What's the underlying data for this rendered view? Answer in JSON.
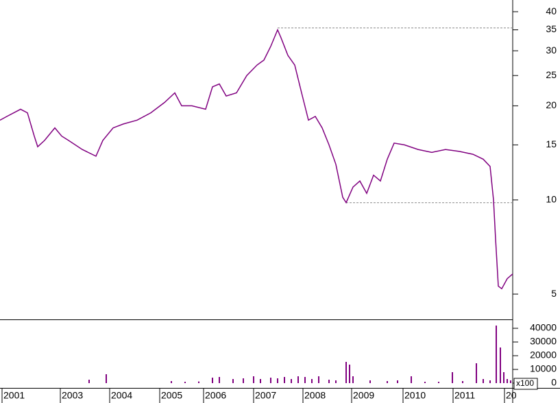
{
  "chart_data": [
    {
      "type": "line",
      "log_scale": true,
      "color": "#800080",
      "x": [
        0,
        10,
        30,
        40,
        50,
        55,
        65,
        80,
        90,
        100,
        120,
        140,
        150,
        165,
        180,
        200,
        220,
        240,
        255,
        265,
        280,
        300,
        310,
        320,
        330,
        345,
        360,
        375,
        385,
        395,
        405,
        410,
        420,
        430,
        440,
        450,
        460,
        470,
        480,
        490,
        500,
        505,
        515,
        525,
        535,
        545,
        555,
        565,
        575,
        590,
        610,
        630,
        650,
        670,
        690,
        705,
        715,
        720,
        723,
        727,
        732,
        740,
        748
      ],
      "values": [
        18,
        18.5,
        19.5,
        19,
        16,
        14.8,
        15.5,
        17,
        16,
        15.5,
        14.5,
        13.8,
        15.5,
        17,
        17.5,
        18,
        19,
        20.5,
        22,
        20,
        20,
        19.5,
        23,
        23.5,
        21.5,
        22,
        25,
        27,
        28,
        31,
        35,
        33,
        29,
        27,
        22,
        18,
        18.5,
        17,
        15,
        13,
        10.2,
        9.8,
        11,
        11.5,
        10.5,
        12,
        11.5,
        13.5,
        15.2,
        15,
        14.5,
        14.2,
        14.5,
        14.3,
        14,
        13.5,
        12.8,
        10,
        7.5,
        5.3,
        5.2,
        5.6,
        5.8
      ],
      "reference_lines": [
        35.5,
        9.8
      ],
      "xlim": [
        0,
        748
      ],
      "ylim": [
        4.15,
        43.6
      ],
      "yticks": [
        5,
        10,
        15,
        20,
        25,
        30,
        35,
        40
      ]
    },
    {
      "type": "bar",
      "color": "#800080",
      "unit_label": "x100",
      "x": [
        130,
        155,
        250,
        270,
        290,
        310,
        320,
        340,
        355,
        370,
        380,
        395,
        405,
        415,
        425,
        435,
        445,
        455,
        465,
        480,
        490,
        505,
        510,
        515,
        540,
        565,
        580,
        600,
        620,
        640,
        660,
        675,
        695,
        705,
        715,
        724,
        730,
        735,
        740,
        745
      ],
      "values": [
        2500,
        6500,
        1500,
        1000,
        1200,
        4000,
        4500,
        3000,
        3500,
        5000,
        3000,
        4000,
        3500,
        4500,
        3000,
        5000,
        4500,
        3000,
        5000,
        2500,
        2000,
        15500,
        13500,
        5000,
        2000,
        1500,
        2000,
        5000,
        1000,
        1000,
        8000,
        1500,
        14500,
        3000,
        2000,
        42000,
        26000,
        8000,
        3000,
        2000
      ],
      "xlim": [
        0,
        748
      ],
      "ylim": [
        -3500,
        46000
      ],
      "yticks": [
        0,
        10000,
        20000,
        30000,
        40000
      ],
      "xticks": [
        {
          "value": 3,
          "label": "2001"
        },
        {
          "value": 88,
          "label": "2003"
        },
        {
          "value": 160,
          "label": "2004"
        },
        {
          "value": 233,
          "label": "2005"
        },
        {
          "value": 297,
          "label": "2006"
        },
        {
          "value": 370,
          "label": "2007"
        },
        {
          "value": 442,
          "label": "2008"
        },
        {
          "value": 513,
          "label": "2009"
        },
        {
          "value": 588,
          "label": "2010"
        },
        {
          "value": 661,
          "label": "2011"
        },
        {
          "value": 736,
          "label": "20"
        }
      ]
    }
  ]
}
